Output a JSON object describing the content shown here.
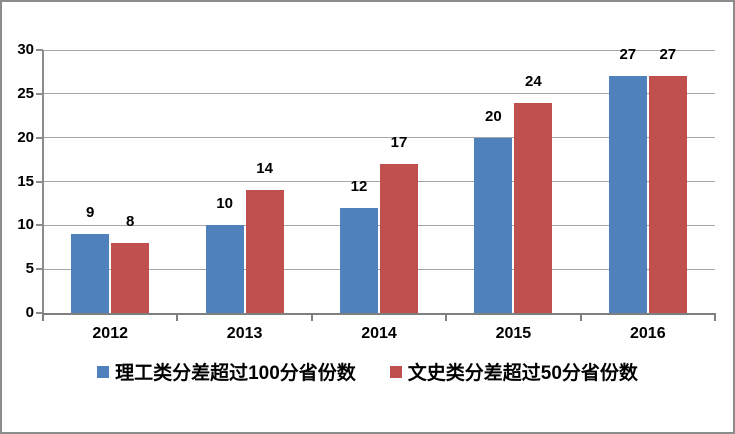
{
  "chart_data": {
    "type": "bar",
    "title": "",
    "categories": [
      "2012",
      "2013",
      "2014",
      "2015",
      "2016"
    ],
    "series": [
      {
        "name": "理工类分差超过100分省份数",
        "color": "#4F81BD",
        "values": [
          9,
          10,
          12,
          20,
          27
        ]
      },
      {
        "name": "文史类分差超过50分省份数",
        "color": "#C0504D",
        "values": [
          8,
          14,
          17,
          24,
          27
        ]
      }
    ],
    "xlabel": "",
    "ylabel": "",
    "ylim": [
      0,
      30
    ],
    "y_ticks": [
      0,
      5,
      10,
      15,
      20,
      25,
      30
    ],
    "grid": "horizontal",
    "legend_position": "bottom",
    "data_labels": true
  },
  "colors": {
    "background": "#FFFFFF",
    "gridline": "#A6A6A6",
    "axis": "#7F7F7F",
    "text": "#000000",
    "frame_border": "#8C8C8C"
  }
}
